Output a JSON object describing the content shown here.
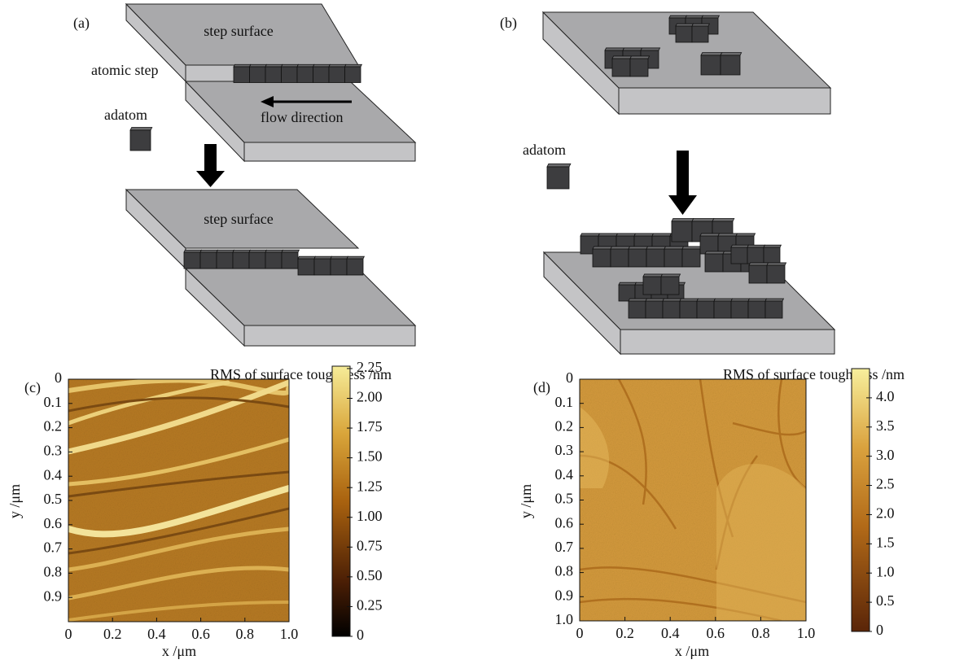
{
  "panels": [
    {
      "label": "(a)",
      "texts": [
        "step surface",
        "atomic step",
        "adatom",
        "flow direction",
        "step surface"
      ]
    },
    {
      "label": "(b)",
      "texts": [
        "adatom"
      ]
    },
    {
      "label": "(c)",
      "colorbar_title": "RMS of surface toughness /nm",
      "xlabel": "x /μm",
      "ylabel": "y /μm",
      "xlim": [
        0,
        1
      ],
      "ylim": [
        0,
        1
      ],
      "xticks": [
        0,
        0.2,
        0.4,
        0.6,
        0.8,
        {
          "value": 1,
          "label": "1.0"
        }
      ],
      "yticks": [
        0,
        0.1,
        0.2,
        0.3,
        0.4,
        0.5,
        0.6,
        0.7,
        0.8,
        0.9
      ],
      "clim": [
        0,
        2.27
      ],
      "cticks": [
        0,
        0.25,
        {
          "value": 0.5,
          "label": "0.50"
        },
        0.75,
        {
          "value": 1,
          "label": "1.00"
        },
        1.25,
        {
          "value": 1.5,
          "label": "1.50"
        },
        1.75,
        {
          "value": 2,
          "label": "2.00"
        },
        2.25
      ]
    },
    {
      "label": "(d)",
      "colorbar_title": "RMS of surface toughness /nm",
      "xlabel": "x /μm",
      "ylabel": "y /μm",
      "xlim": [
        0,
        1
      ],
      "ylim": [
        0,
        1
      ],
      "xticks": [
        0,
        0.2,
        0.4,
        0.6,
        0.8,
        {
          "value": 1,
          "label": "1.0"
        }
      ],
      "yticks": [
        0,
        0.1,
        0.2,
        0.3,
        0.4,
        0.5,
        0.6,
        0.7,
        0.8,
        0.9,
        {
          "value": 1,
          "label": "1.0"
        }
      ],
      "clim": [
        0,
        4.5
      ],
      "cticks": [
        0,
        0.5,
        {
          "value": 1,
          "label": "1.0"
        },
        1.5,
        {
          "value": 2,
          "label": "2.0"
        },
        2.5,
        {
          "value": 3,
          "label": "3.0"
        },
        3.5,
        {
          "value": 4,
          "label": "4.0"
        }
      ]
    }
  ]
}
